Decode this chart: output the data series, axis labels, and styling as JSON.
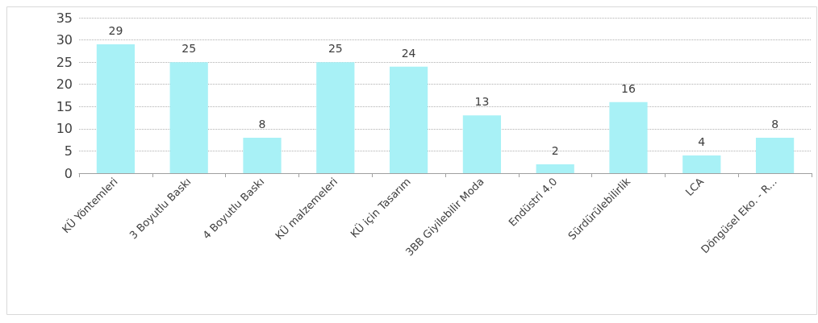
{
  "chart_data": {
    "type": "bar",
    "categories": [
      "KÜ Yöntemleri",
      "3 Boyutlu Baskı",
      "4 Boyutlu Baskı",
      "KÜ malzemeleri",
      "KÜ için Tasarım",
      "3BB Giyilebilir Moda",
      "Endüstri 4.0",
      "Sürdürülebilirlik",
      "LCA",
      "Döngüsel Eko. - R..."
    ],
    "values": [
      29,
      25,
      8,
      25,
      24,
      13,
      2,
      16,
      4,
      8
    ],
    "color": "#a8f1f6",
    "ylim": [
      0,
      35
    ],
    "yticks": [
      0,
      5,
      10,
      15,
      20,
      25,
      30,
      35
    ],
    "grid": "y",
    "data_labels": true
  }
}
